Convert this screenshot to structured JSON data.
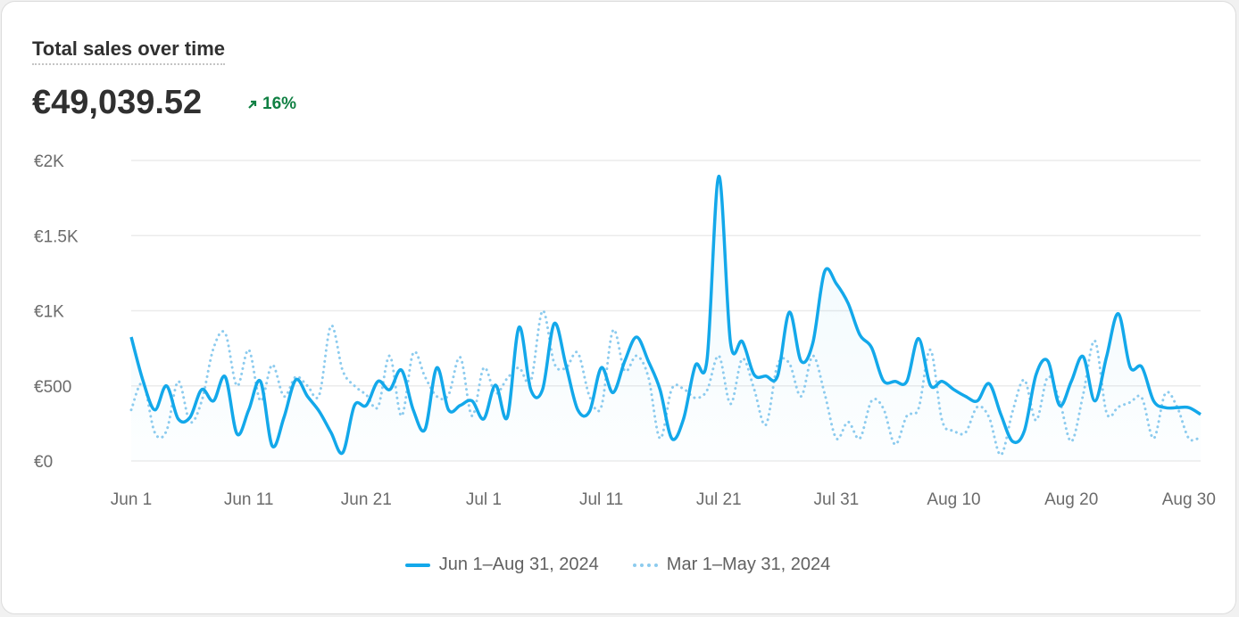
{
  "card": {
    "title": "Total sales over time",
    "total": "€49,039.52",
    "trend": "16%",
    "trend_icon": "arrow-up-right-icon"
  },
  "colors": {
    "current": "#13a8ea",
    "previous": "#8ccbee",
    "trend": "#108043",
    "grid": "#ebebeb"
  },
  "chart_data": {
    "type": "line",
    "title": "Total sales over time",
    "ylim": [
      0,
      2000
    ],
    "yticks": [
      {
        "value": 0,
        "label": "€0"
      },
      {
        "value": 500,
        "label": "€500"
      },
      {
        "value": 1000,
        "label": "€1K"
      },
      {
        "value": 1500,
        "label": "€1.5K"
      },
      {
        "value": 2000,
        "label": "€2K"
      }
    ],
    "xticks": [
      {
        "index": 0,
        "label": "Jun 1"
      },
      {
        "index": 10,
        "label": "Jun 11"
      },
      {
        "index": 20,
        "label": "Jun 21"
      },
      {
        "index": 30,
        "label": "Jul 1"
      },
      {
        "index": 40,
        "label": "Jul 11"
      },
      {
        "index": 50,
        "label": "Jul 21"
      },
      {
        "index": 60,
        "label": "Jul 31"
      },
      {
        "index": 70,
        "label": "Aug 10"
      },
      {
        "index": 80,
        "label": "Aug 20"
      },
      {
        "index": 90,
        "label": "Aug 30"
      }
    ],
    "grid": true,
    "legend": "bottom-center",
    "series": [
      {
        "name": "Jun 1–Aug 31, 2024",
        "style": "solid",
        "values": [
          825,
          535,
          340,
          500,
          280,
          290,
          475,
          400,
          560,
          180,
          340,
          530,
          100,
          290,
          540,
          430,
          330,
          190,
          55,
          370,
          370,
          530,
          475,
          605,
          340,
          210,
          620,
          340,
          370,
          400,
          280,
          505,
          290,
          890,
          475,
          475,
          915,
          635,
          340,
          330,
          620,
          455,
          665,
          825,
          665,
          475,
          150,
          280,
          635,
          675,
          1895,
          785,
          795,
          575,
          565,
          565,
          990,
          665,
          785,
          1260,
          1180,
          1050,
          840,
          755,
          535,
          530,
          530,
          815,
          505,
          530,
          475,
          430,
          400,
          515,
          310,
          130,
          200,
          575,
          665,
          370,
          530,
          695,
          400,
          695,
          980,
          625,
          625,
          400,
          355,
          355,
          355,
          310
        ]
      },
      {
        "name": "Mar 1–May 31, 2024",
        "style": "dotted",
        "values": [
          340,
          520,
          190,
          200,
          530,
          260,
          400,
          750,
          850,
          500,
          740,
          400,
          640,
          430,
          560,
          500,
          440,
          900,
          600,
          500,
          440,
          360,
          700,
          300,
          720,
          560,
          430,
          440,
          690,
          300,
          620,
          450,
          550,
          620,
          530,
          1000,
          650,
          620,
          720,
          430,
          360,
          870,
          600,
          700,
          560,
          150,
          480,
          480,
          420,
          470,
          700,
          380,
          680,
          480,
          240,
          640,
          650,
          430,
          700,
          450,
          150,
          260,
          150,
          400,
          350,
          110,
          300,
          350,
          740,
          270,
          200,
          190,
          360,
          290,
          40,
          330,
          540,
          270,
          560,
          400,
          130,
          440,
          800,
          320,
          360,
          390,
          420,
          150,
          450,
          360,
          150,
          160
        ]
      }
    ]
  }
}
